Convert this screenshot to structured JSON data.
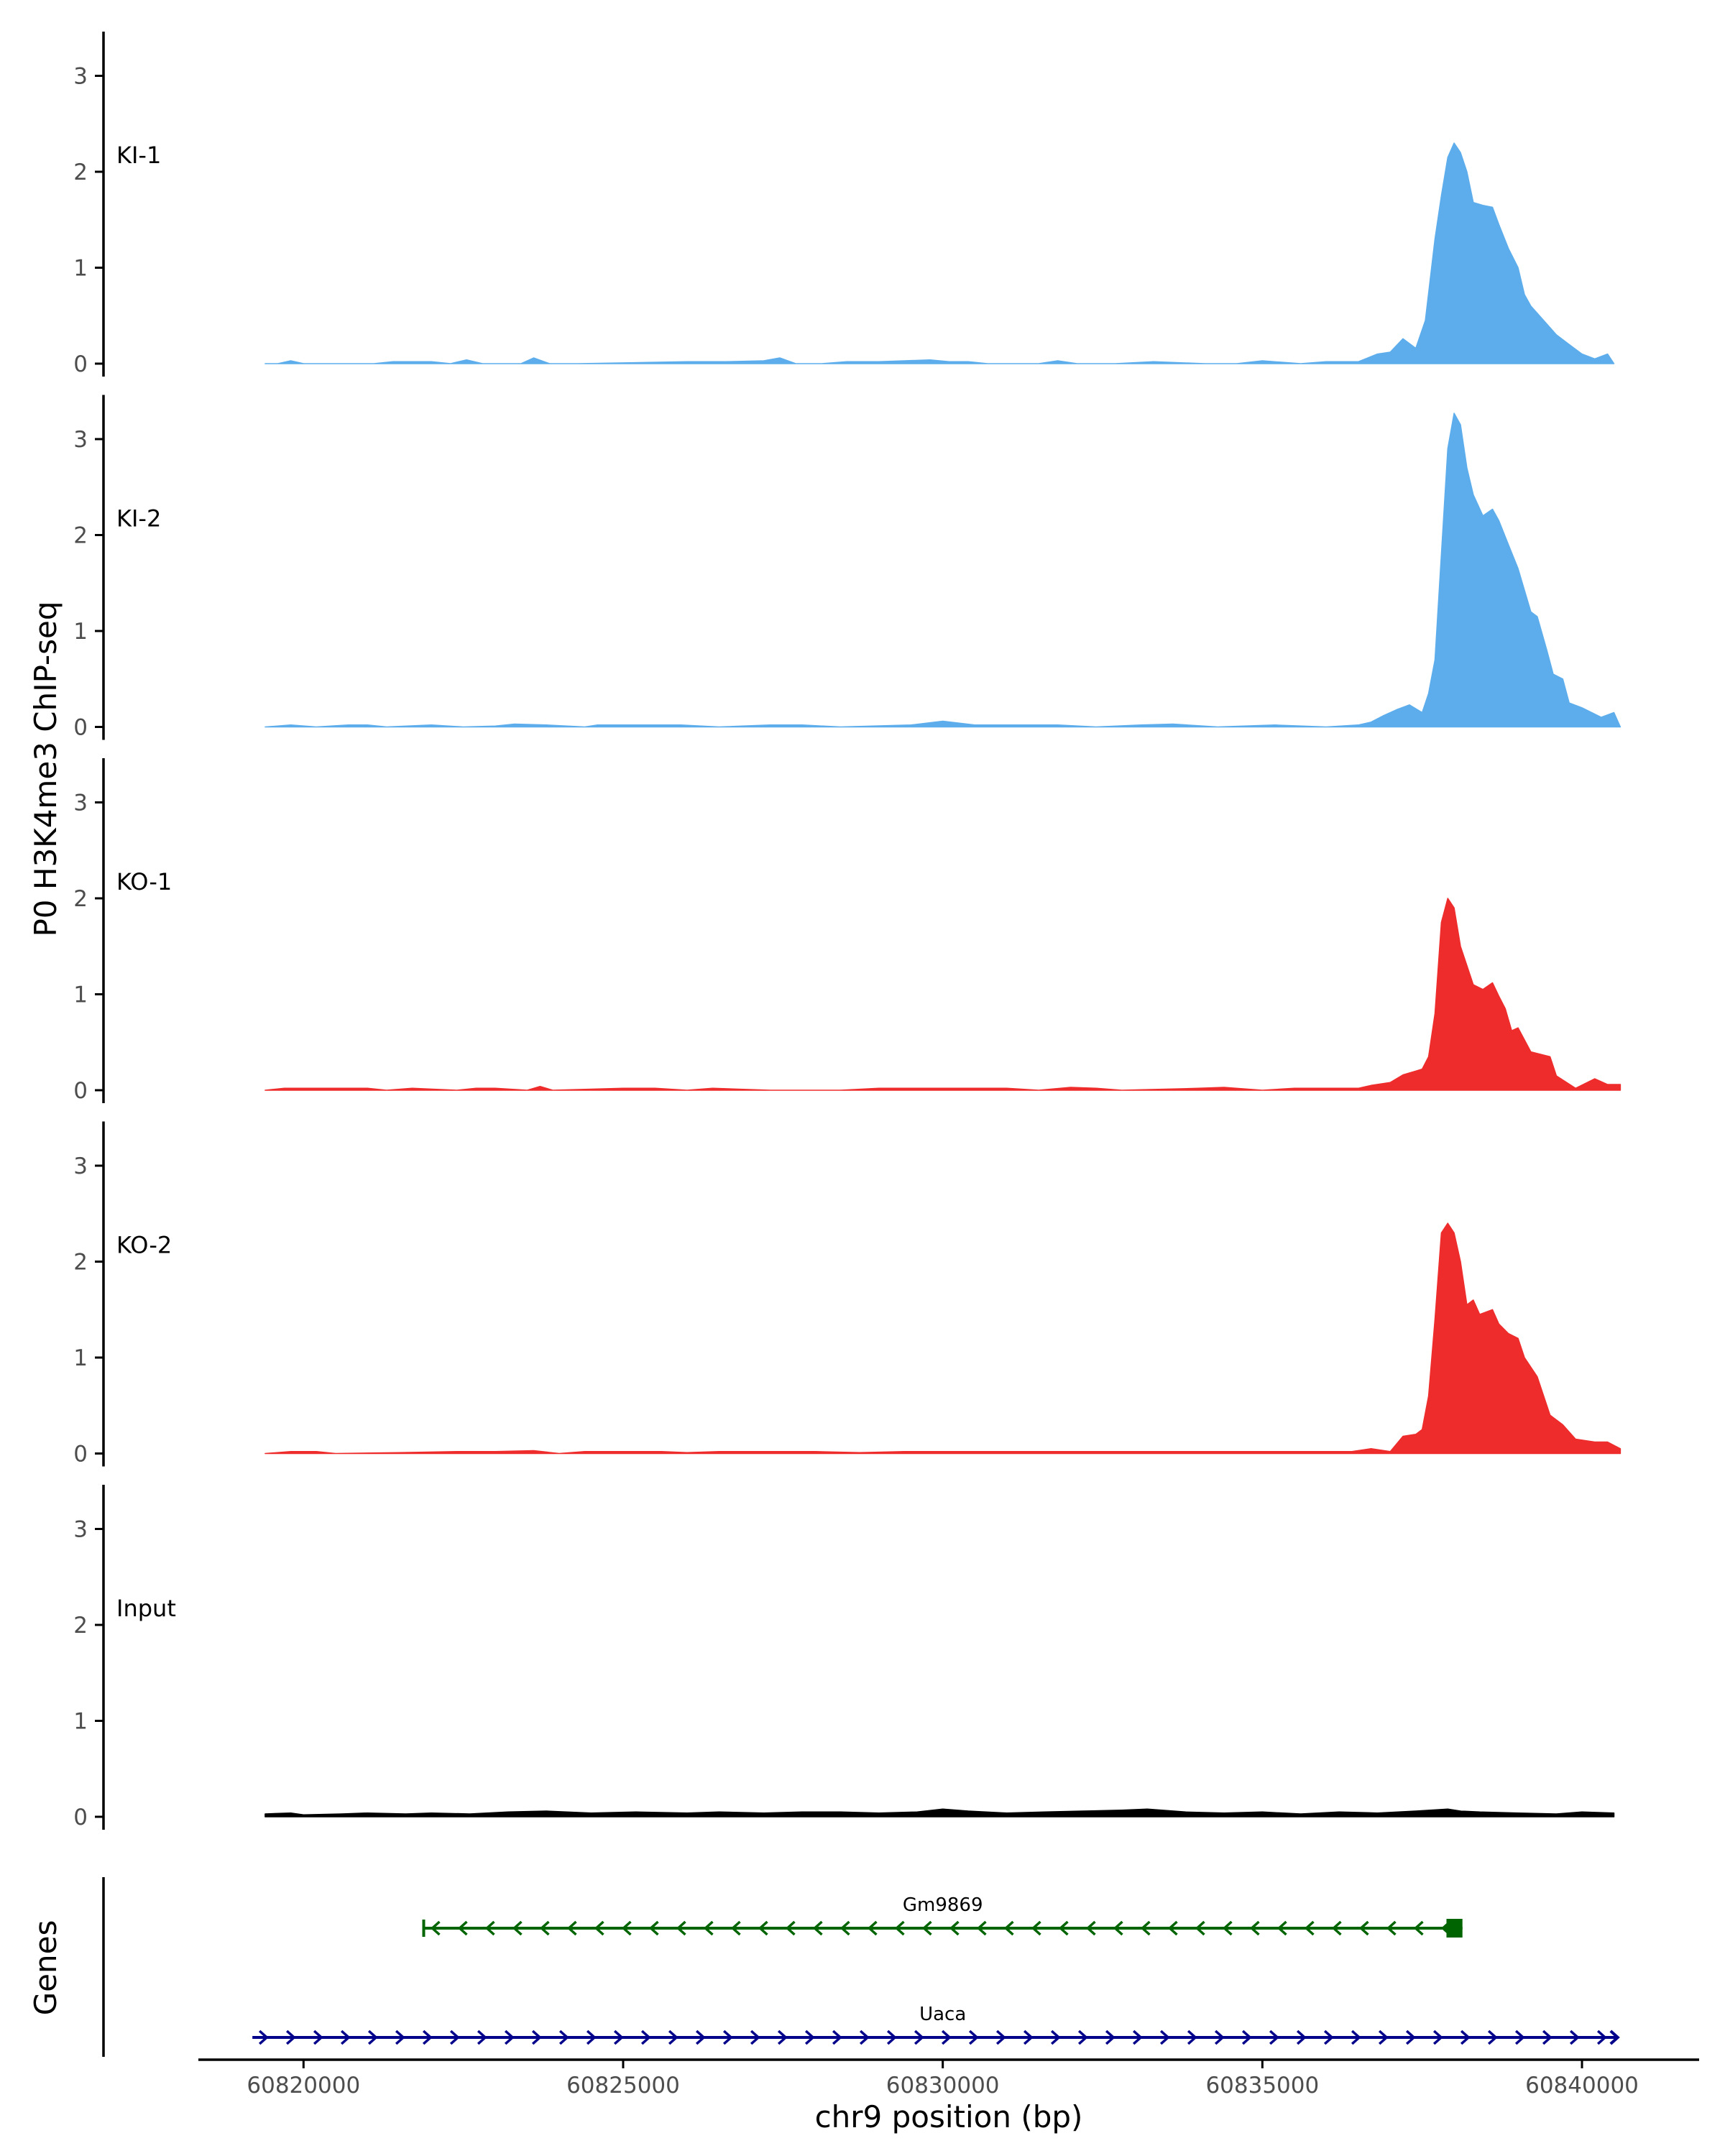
{
  "chart_data": {
    "type": "area",
    "ylabel": "P0 H3K4me3 ChIP-seq",
    "xlabel": "chr9 position (bp)",
    "genes_label": "Genes",
    "xlim": [
      60818400,
      60841900
    ],
    "ylim": [
      0,
      3.4
    ],
    "y_ticks": [
      "0",
      "1",
      "2",
      "3"
    ],
    "x_ticks": [
      {
        "value": 60820000,
        "label": "60820000"
      },
      {
        "value": 60825000,
        "label": "60825000"
      },
      {
        "value": 60830000,
        "label": "60830000"
      },
      {
        "value": 60835000,
        "label": "60835000"
      },
      {
        "value": 60840000,
        "label": "60840000"
      }
    ],
    "grid": false,
    "colors": {
      "KI": "#5DADEC",
      "KO": "#EE2C2C",
      "Input": "#000000",
      "Gm9869": "#006400",
      "Uaca": "#00008B",
      "axis": "#000000"
    },
    "tracks": [
      {
        "name": "KI-1",
        "color": "#5DADEC",
        "x": [
          60819400,
          60819600,
          60819800,
          60820000,
          60820200,
          60821100,
          60821400,
          60821700,
          60822000,
          60822300,
          60822550,
          60822800,
          60823400,
          60823600,
          60823850,
          60824300,
          60826000,
          60826600,
          60827200,
          60827450,
          60827700,
          60828100,
          60828500,
          60829000,
          60829400,
          60829800,
          60830100,
          60830400,
          60830700,
          60831500,
          60831800,
          60832100,
          60832700,
          60833300,
          60834100,
          60834600,
          60835000,
          60835600,
          60836000,
          60836500,
          60836800,
          60837000,
          60837200,
          60837400,
          60837550,
          60837700,
          60837800,
          60837900,
          60838000,
          60838100,
          60838200,
          60838300,
          60838450,
          60838600,
          60838700,
          60838850,
          60839000,
          60839100,
          60839200,
          60839400,
          60839600,
          60839800,
          60840000,
          60840200,
          60840400,
          60840500
        ],
        "y": [
          0,
          0,
          0.03,
          0,
          0,
          0,
          0.02,
          0.02,
          0.02,
          0,
          0.04,
          0,
          0,
          0.06,
          0,
          0,
          0.02,
          0.02,
          0.03,
          0.06,
          0,
          0,
          0.02,
          0.02,
          0.03,
          0.04,
          0.02,
          0.02,
          0,
          0,
          0.03,
          0,
          0,
          0.02,
          0,
          0,
          0.03,
          0,
          0.02,
          0.02,
          0.1,
          0.12,
          0.26,
          0.16,
          0.45,
          1.3,
          1.75,
          2.15,
          2.3,
          2.2,
          2.0,
          1.68,
          1.65,
          1.63,
          1.45,
          1.2,
          1.0,
          0.72,
          0.6,
          0.45,
          0.3,
          0.2,
          0.1,
          0.05,
          0.1,
          0
        ]
      },
      {
        "name": "KI-2",
        "color": "#5DADEC",
        "x": [
          60819400,
          60819800,
          60820200,
          60820700,
          60821000,
          60821300,
          60822000,
          60822500,
          60823000,
          60823300,
          60823800,
          60824400,
          60824600,
          60825500,
          60825900,
          60826500,
          60827300,
          60827800,
          60828400,
          60829500,
          60830000,
          60830500,
          60831000,
          60831800,
          60832400,
          60833100,
          60833600,
          60834300,
          60835200,
          60836000,
          60836500,
          60836700,
          60836900,
          60837100,
          60837300,
          60837500,
          60837600,
          60837700,
          60837800,
          60837900,
          60838000,
          60838100,
          60838200,
          60838300,
          60838450,
          60838600,
          60838700,
          60838850,
          60839000,
          60839200,
          60839300,
          60839450,
          60839550,
          60839700,
          60839800,
          60840000,
          60840300,
          60840500,
          60840600
        ],
        "y": [
          0,
          0.02,
          0,
          0.02,
          0.02,
          0,
          0.02,
          0,
          0.01,
          0.03,
          0.02,
          0,
          0.02,
          0.02,
          0.02,
          0,
          0.02,
          0.02,
          0,
          0.02,
          0.06,
          0.02,
          0.02,
          0.02,
          0,
          0.02,
          0.03,
          0,
          0.02,
          0,
          0.02,
          0.05,
          0.12,
          0.18,
          0.23,
          0.15,
          0.35,
          0.7,
          1.8,
          2.9,
          3.27,
          3.15,
          2.7,
          2.42,
          2.2,
          2.27,
          2.15,
          1.9,
          1.65,
          1.2,
          1.15,
          0.8,
          0.55,
          0.5,
          0.25,
          0.2,
          0.1,
          0.15,
          0
        ]
      },
      {
        "name": "KO-1",
        "color": "#EE2C2C",
        "x": [
          60819400,
          60819700,
          60820200,
          60821000,
          60821300,
          60821700,
          60822400,
          60822700,
          60823000,
          60823500,
          60823700,
          60823900,
          60825000,
          60825500,
          60826000,
          60826400,
          60827300,
          60828400,
          60829000,
          60829600,
          60830000,
          60830500,
          60831000,
          60831500,
          60832000,
          60832400,
          60832800,
          60834000,
          60834400,
          60835000,
          60835500,
          60836100,
          60836500,
          60836700,
          60837000,
          60837200,
          60837400,
          60837500,
          60837600,
          60837700,
          60837800,
          60837900,
          60838000,
          60838100,
          60838200,
          60838300,
          60838450,
          60838600,
          60838700,
          60838800,
          60838900,
          60839000,
          60839200,
          60839500,
          60839600,
          60839900,
          60840200,
          60840400,
          60840600
        ],
        "y": [
          0,
          0.02,
          0.02,
          0.02,
          0,
          0.02,
          0,
          0.02,
          0.02,
          0,
          0.04,
          0,
          0.02,
          0.02,
          0,
          0.02,
          0,
          0,
          0.02,
          0.02,
          0.02,
          0.02,
          0.02,
          0,
          0.03,
          0.02,
          0,
          0.02,
          0.03,
          0,
          0.02,
          0.02,
          0.02,
          0.05,
          0.08,
          0.16,
          0.2,
          0.22,
          0.35,
          0.8,
          1.75,
          2.0,
          1.9,
          1.5,
          1.3,
          1.1,
          1.05,
          1.12,
          0.98,
          0.85,
          0.62,
          0.65,
          0.4,
          0.35,
          0.15,
          0.02,
          0.12,
          0.06,
          0.06
        ]
      },
      {
        "name": "KO-2",
        "color": "#EE2C2C",
        "x": [
          60819400,
          60819800,
          60820200,
          60820500,
          60821500,
          60822400,
          60823000,
          60823600,
          60824000,
          60824400,
          60825000,
          60825600,
          60826000,
          60826500,
          60827500,
          60828000,
          60828700,
          60829400,
          60829800,
          60830300,
          60830800,
          60831300,
          60832400,
          60833000,
          60833600,
          60834500,
          60835200,
          60835800,
          60836400,
          60836700,
          60837000,
          60837200,
          60837400,
          60837500,
          60837600,
          60837700,
          60837800,
          60837900,
          60838000,
          60838100,
          60838200,
          60838300,
          60838400,
          60838600,
          60838700,
          60838850,
          60839000,
          60839100,
          60839300,
          60839500,
          60839700,
          60839900,
          60840200,
          60840400,
          60840600
        ],
        "y": [
          0,
          0.02,
          0.02,
          0,
          0.01,
          0.02,
          0.02,
          0.03,
          0,
          0.02,
          0.02,
          0.02,
          0.01,
          0.02,
          0.02,
          0.02,
          0.01,
          0.02,
          0.02,
          0.02,
          0.02,
          0.02,
          0.02,
          0.02,
          0.02,
          0.02,
          0.02,
          0.02,
          0.02,
          0.05,
          0.02,
          0.18,
          0.2,
          0.25,
          0.6,
          1.4,
          2.3,
          2.4,
          2.3,
          2.0,
          1.55,
          1.6,
          1.45,
          1.5,
          1.35,
          1.25,
          1.2,
          1.0,
          0.8,
          0.4,
          0.3,
          0.15,
          0.12,
          0.12,
          0.05
        ]
      },
      {
        "name": "Input",
        "color": "#000000",
        "x": [
          60819400,
          60819800,
          60820000,
          60820600,
          60821000,
          60821600,
          60822000,
          60822600,
          60823200,
          60823800,
          60824500,
          60825200,
          60826000,
          60826500,
          60827200,
          60827800,
          60828400,
          60829000,
          60829600,
          60830000,
          60830400,
          60831000,
          60831600,
          60832200,
          60832800,
          60833200,
          60833800,
          60834400,
          60835000,
          60835600,
          60836200,
          60836800,
          60837400,
          60837900,
          60838100,
          60838400,
          60839000,
          60839600,
          60840000,
          60840500
        ],
        "y": [
          0.03,
          0.04,
          0.02,
          0.03,
          0.04,
          0.03,
          0.04,
          0.03,
          0.05,
          0.06,
          0.04,
          0.05,
          0.04,
          0.05,
          0.04,
          0.05,
          0.05,
          0.04,
          0.05,
          0.08,
          0.06,
          0.04,
          0.05,
          0.06,
          0.07,
          0.08,
          0.05,
          0.04,
          0.05,
          0.03,
          0.05,
          0.04,
          0.06,
          0.08,
          0.06,
          0.05,
          0.04,
          0.03,
          0.05,
          0.04
        ]
      }
    ],
    "genes": [
      {
        "name": "Gm9869",
        "start": 60821880,
        "end": 60838130,
        "strand": "-",
        "exon_start": 60837880,
        "exon_end": 60838130,
        "color": "#006400"
      },
      {
        "name": "Uaca",
        "start": 60819200,
        "end": 60840560,
        "strand": "+",
        "color": "#00008B"
      }
    ]
  }
}
